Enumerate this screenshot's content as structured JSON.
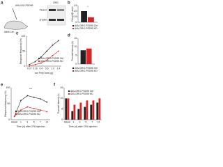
{
  "diagram": {
    "panel": "a",
    "labels": [
      "AAV-DIO-PSD95",
      "Advil-Cre"
    ]
  },
  "blot": {
    "header": "DRG",
    "rows": [
      "Piezo2",
      "β-actin"
    ]
  },
  "chart_data": [
    {
      "type": "bar",
      "panel": "b",
      "ylabel": "Piezo2/β-actin",
      "categories": [
        null
      ],
      "series": [
        {
          "name": "AAV-DRG-PSD95 Ctrl",
          "color": "#222222",
          "values": [
            1.0
          ]
        },
        {
          "name": "AAV-DRG-PSD95 KD",
          "color": "#d62728",
          "values": [
            0.45
          ]
        }
      ],
      "ylim": [
        0,
        1.5
      ],
      "yticks": [
        0,
        0.5,
        {
          "value": 1,
          "label": "1.0"
        },
        1.5
      ],
      "annotations": [
        "*"
      ]
    },
    {
      "type": "line",
      "panel": "c",
      "ylabel": "Response frequency (%)",
      "xlabel": "von Frey force (g)",
      "categories": [
        "0.07",
        "0.16",
        "0.4",
        "0.6",
        "1.0",
        "1.4"
      ],
      "series": [
        {
          "name": "AAV-DRG-PSD95 Ctrl",
          "color": "#222222",
          "values": [
            5,
            15,
            30,
            50,
            70,
            85
          ]
        },
        {
          "name": "AAV-DRG-PSD95 KD",
          "color": "#d62728",
          "values": [
            0,
            5,
            10,
            20,
            35,
            50
          ]
        }
      ],
      "ylim": [
        0,
        100
      ],
      "yticks": [
        0,
        50,
        100
      ]
    },
    {
      "type": "bar",
      "panel": "d",
      "ylabel": "Thermal latency (s)",
      "categories": [
        null
      ],
      "series": [
        {
          "name": "AAV-DRG-PSD95 Ctrl",
          "color": "#222222",
          "values": [
            8
          ]
        },
        {
          "name": "AAV-DRG-PSD95 KD",
          "color": "#d62728",
          "values": [
            9
          ]
        }
      ],
      "ylim": [
        0,
        15
      ],
      "yticks": [
        0,
        5,
        10,
        15
      ]
    },
    {
      "type": "line",
      "panel": "e",
      "ylabel": "Response frequency (%)",
      "xlabel": "Time (d) after CFA injection",
      "categories": [
        "Basal",
        "1",
        "3",
        "5",
        "7",
        "14"
      ],
      "series": [
        {
          "name": "AAV-DRG-PSD95 Ctrl",
          "color": "#222222",
          "values": [
            10,
            60,
            75,
            70,
            65,
            55
          ]
        },
        {
          "name": "AAV-DRG-PSD95 KD",
          "color": "#d62728",
          "values": [
            10,
            30,
            40,
            35,
            30,
            25
          ]
        }
      ],
      "ylim": [
        0,
        100
      ],
      "yticks": [
        0,
        50,
        100
      ],
      "annotations": [
        "***"
      ]
    },
    {
      "type": "bar",
      "panel": "f",
      "ylabel": "Thermal latency (s)",
      "xlabel": "Time (d) after CFA injection",
      "categories": [
        "Basal",
        "1",
        "3",
        "5",
        "7",
        "14"
      ],
      "series": [
        {
          "name": "AAV-DRG-PSD95 Ctrl",
          "color": "#222222",
          "values": [
            10,
            4,
            5,
            6,
            7,
            8
          ]
        },
        {
          "name": "AAV-DRG-PSD95 KD",
          "color": "#d62728",
          "values": [
            10,
            7,
            8,
            9,
            9,
            10
          ]
        }
      ],
      "ylim": [
        0,
        15
      ],
      "yticks": [
        0,
        5,
        10,
        15
      ]
    }
  ]
}
